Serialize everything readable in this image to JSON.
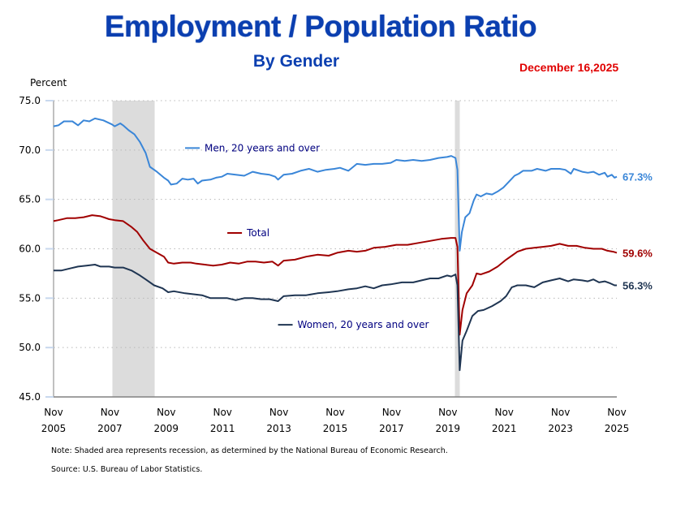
{
  "chart_data": {
    "type": "line",
    "title": "Employment / Population Ratio",
    "subtitle": "By Gender",
    "date": "December 16,2025",
    "ylabel": "Percent",
    "xlabel": "",
    "ylim": [
      45.0,
      75.0
    ],
    "yticks": [
      "75.0",
      "70.0",
      "65.0",
      "60.0",
      "55.0",
      "50.0",
      "45.0"
    ],
    "ytick_values": [
      75,
      70,
      65,
      60,
      55,
      50,
      45
    ],
    "xlim": [
      2005.83,
      2025.83
    ],
    "xticks": [
      {
        "x": 2005.83,
        "month": "Nov",
        "year": "2005"
      },
      {
        "x": 2007.83,
        "month": "Nov",
        "year": "2007"
      },
      {
        "x": 2009.83,
        "month": "Nov",
        "year": "2009"
      },
      {
        "x": 2011.83,
        "month": "Nov",
        "year": "2011"
      },
      {
        "x": 2013.83,
        "month": "Nov",
        "year": "2013"
      },
      {
        "x": 2015.83,
        "month": "Nov",
        "year": "2015"
      },
      {
        "x": 2017.83,
        "month": "Nov",
        "year": "2017"
      },
      {
        "x": 2019.83,
        "month": "Nov",
        "year": "2019"
      },
      {
        "x": 2021.83,
        "month": "Nov",
        "year": "2021"
      },
      {
        "x": 2023.83,
        "month": "Nov",
        "year": "2023"
      },
      {
        "x": 2025.83,
        "month": "Nov",
        "year": "2025"
      }
    ],
    "grid": "horizontal-dotted",
    "recessions": [
      [
        2007.92,
        2009.42
      ],
      [
        2020.08,
        2020.25
      ]
    ],
    "series": [
      {
        "name": "Men, 20 years and over",
        "color": "#3a86d8",
        "end_label": "67.3%",
        "points": [
          [
            2005.83,
            72.4
          ],
          [
            2006.0,
            72.5
          ],
          [
            2006.2,
            72.9
          ],
          [
            2006.5,
            72.9
          ],
          [
            2006.7,
            72.5
          ],
          [
            2006.9,
            73.0
          ],
          [
            2007.1,
            72.9
          ],
          [
            2007.3,
            73.2
          ],
          [
            2007.6,
            73.0
          ],
          [
            2007.9,
            72.6
          ],
          [
            2008.0,
            72.4
          ],
          [
            2008.2,
            72.7
          ],
          [
            2008.3,
            72.5
          ],
          [
            2008.5,
            72.0
          ],
          [
            2008.7,
            71.6
          ],
          [
            2008.9,
            70.8
          ],
          [
            2009.1,
            69.7
          ],
          [
            2009.25,
            68.3
          ],
          [
            2009.5,
            67.8
          ],
          [
            2009.75,
            67.2
          ],
          [
            2009.9,
            66.9
          ],
          [
            2010.0,
            66.5
          ],
          [
            2010.2,
            66.6
          ],
          [
            2010.4,
            67.1
          ],
          [
            2010.6,
            67.0
          ],
          [
            2010.8,
            67.1
          ],
          [
            2010.95,
            66.6
          ],
          [
            2011.1,
            66.9
          ],
          [
            2011.4,
            67.0
          ],
          [
            2011.6,
            67.2
          ],
          [
            2011.8,
            67.3
          ],
          [
            2012.0,
            67.6
          ],
          [
            2012.3,
            67.5
          ],
          [
            2012.6,
            67.4
          ],
          [
            2012.9,
            67.8
          ],
          [
            2013.2,
            67.6
          ],
          [
            2013.5,
            67.5
          ],
          [
            2013.7,
            67.3
          ],
          [
            2013.8,
            67.0
          ],
          [
            2014.0,
            67.5
          ],
          [
            2014.3,
            67.6
          ],
          [
            2014.6,
            67.9
          ],
          [
            2014.9,
            68.1
          ],
          [
            2015.2,
            67.8
          ],
          [
            2015.5,
            68.0
          ],
          [
            2015.8,
            68.1
          ],
          [
            2016.0,
            68.2
          ],
          [
            2016.3,
            67.9
          ],
          [
            2016.6,
            68.6
          ],
          [
            2016.9,
            68.5
          ],
          [
            2017.2,
            68.6
          ],
          [
            2017.5,
            68.6
          ],
          [
            2017.8,
            68.7
          ],
          [
            2018.0,
            69.0
          ],
          [
            2018.3,
            68.9
          ],
          [
            2018.6,
            69.0
          ],
          [
            2018.9,
            68.9
          ],
          [
            2019.2,
            69.0
          ],
          [
            2019.5,
            69.2
          ],
          [
            2019.8,
            69.3
          ],
          [
            2019.95,
            69.4
          ],
          [
            2020.1,
            69.2
          ],
          [
            2020.17,
            68.0
          ],
          [
            2020.25,
            59.8
          ],
          [
            2020.33,
            61.7
          ],
          [
            2020.45,
            63.2
          ],
          [
            2020.6,
            63.6
          ],
          [
            2020.75,
            64.9
          ],
          [
            2020.85,
            65.5
          ],
          [
            2021.0,
            65.3
          ],
          [
            2021.2,
            65.6
          ],
          [
            2021.4,
            65.5
          ],
          [
            2021.6,
            65.8
          ],
          [
            2021.8,
            66.2
          ],
          [
            2022.0,
            66.8
          ],
          [
            2022.2,
            67.4
          ],
          [
            2022.35,
            67.6
          ],
          [
            2022.5,
            67.9
          ],
          [
            2022.8,
            67.9
          ],
          [
            2023.0,
            68.1
          ],
          [
            2023.3,
            67.9
          ],
          [
            2023.5,
            68.1
          ],
          [
            2023.8,
            68.1
          ],
          [
            2024.0,
            68.0
          ],
          [
            2024.2,
            67.6
          ],
          [
            2024.3,
            68.1
          ],
          [
            2024.6,
            67.8
          ],
          [
            2024.8,
            67.7
          ],
          [
            2025.0,
            67.8
          ],
          [
            2025.2,
            67.5
          ],
          [
            2025.4,
            67.7
          ],
          [
            2025.5,
            67.3
          ],
          [
            2025.65,
            67.5
          ],
          [
            2025.75,
            67.2
          ],
          [
            2025.83,
            67.3
          ]
        ]
      },
      {
        "name": "Total",
        "color": "#a00000",
        "end_label": "59.6%",
        "points": [
          [
            2005.83,
            62.8
          ],
          [
            2006.0,
            62.9
          ],
          [
            2006.3,
            63.1
          ],
          [
            2006.6,
            63.1
          ],
          [
            2006.9,
            63.2
          ],
          [
            2007.2,
            63.4
          ],
          [
            2007.5,
            63.3
          ],
          [
            2007.8,
            63.0
          ],
          [
            2008.0,
            62.9
          ],
          [
            2008.3,
            62.8
          ],
          [
            2008.6,
            62.2
          ],
          [
            2008.8,
            61.7
          ],
          [
            2009.0,
            60.9
          ],
          [
            2009.25,
            60.0
          ],
          [
            2009.5,
            59.6
          ],
          [
            2009.75,
            59.2
          ],
          [
            2009.9,
            58.6
          ],
          [
            2010.1,
            58.5
          ],
          [
            2010.4,
            58.6
          ],
          [
            2010.7,
            58.6
          ],
          [
            2010.9,
            58.5
          ],
          [
            2011.2,
            58.4
          ],
          [
            2011.5,
            58.3
          ],
          [
            2011.8,
            58.4
          ],
          [
            2012.1,
            58.6
          ],
          [
            2012.4,
            58.5
          ],
          [
            2012.7,
            58.7
          ],
          [
            2013.0,
            58.7
          ],
          [
            2013.3,
            58.6
          ],
          [
            2013.6,
            58.7
          ],
          [
            2013.8,
            58.3
          ],
          [
            2014.0,
            58.8
          ],
          [
            2014.4,
            58.9
          ],
          [
            2014.8,
            59.2
          ],
          [
            2015.2,
            59.4
          ],
          [
            2015.6,
            59.3
          ],
          [
            2015.9,
            59.6
          ],
          [
            2016.3,
            59.8
          ],
          [
            2016.6,
            59.7
          ],
          [
            2016.9,
            59.8
          ],
          [
            2017.2,
            60.1
          ],
          [
            2017.6,
            60.2
          ],
          [
            2018.0,
            60.4
          ],
          [
            2018.4,
            60.4
          ],
          [
            2018.8,
            60.6
          ],
          [
            2019.2,
            60.8
          ],
          [
            2019.6,
            61.0
          ],
          [
            2019.95,
            61.1
          ],
          [
            2020.1,
            61.1
          ],
          [
            2020.17,
            60.2
          ],
          [
            2020.25,
            51.3
          ],
          [
            2020.35,
            53.8
          ],
          [
            2020.5,
            55.5
          ],
          [
            2020.7,
            56.3
          ],
          [
            2020.85,
            57.5
          ],
          [
            2021.0,
            57.4
          ],
          [
            2021.3,
            57.7
          ],
          [
            2021.6,
            58.2
          ],
          [
            2021.9,
            58.9
          ],
          [
            2022.1,
            59.3
          ],
          [
            2022.3,
            59.7
          ],
          [
            2022.6,
            60.0
          ],
          [
            2022.9,
            60.1
          ],
          [
            2023.2,
            60.2
          ],
          [
            2023.5,
            60.3
          ],
          [
            2023.8,
            60.5
          ],
          [
            2024.1,
            60.3
          ],
          [
            2024.4,
            60.3
          ],
          [
            2024.7,
            60.1
          ],
          [
            2025.0,
            60.0
          ],
          [
            2025.3,
            60.0
          ],
          [
            2025.5,
            59.8
          ],
          [
            2025.7,
            59.7
          ],
          [
            2025.83,
            59.6
          ]
        ]
      },
      {
        "name": "Women, 20 years and over",
        "color": "#1f3552",
        "end_label": "56.3%",
        "points": [
          [
            2005.83,
            57.8
          ],
          [
            2006.1,
            57.8
          ],
          [
            2006.4,
            58.0
          ],
          [
            2006.7,
            58.2
          ],
          [
            2007.0,
            58.3
          ],
          [
            2007.3,
            58.4
          ],
          [
            2007.5,
            58.2
          ],
          [
            2007.8,
            58.2
          ],
          [
            2008.0,
            58.1
          ],
          [
            2008.3,
            58.1
          ],
          [
            2008.6,
            57.8
          ],
          [
            2008.9,
            57.3
          ],
          [
            2009.1,
            56.9
          ],
          [
            2009.4,
            56.3
          ],
          [
            2009.7,
            56.0
          ],
          [
            2009.9,
            55.6
          ],
          [
            2010.1,
            55.7
          ],
          [
            2010.5,
            55.5
          ],
          [
            2010.8,
            55.4
          ],
          [
            2011.1,
            55.3
          ],
          [
            2011.4,
            55.0
          ],
          [
            2011.7,
            55.0
          ],
          [
            2012.0,
            55.0
          ],
          [
            2012.3,
            54.8
          ],
          [
            2012.6,
            55.0
          ],
          [
            2012.9,
            55.0
          ],
          [
            2013.2,
            54.9
          ],
          [
            2013.5,
            54.9
          ],
          [
            2013.8,
            54.7
          ],
          [
            2014.0,
            55.2
          ],
          [
            2014.4,
            55.3
          ],
          [
            2014.8,
            55.3
          ],
          [
            2015.2,
            55.5
          ],
          [
            2015.6,
            55.6
          ],
          [
            2015.9,
            55.7
          ],
          [
            2016.3,
            55.9
          ],
          [
            2016.6,
            56.0
          ],
          [
            2016.9,
            56.2
          ],
          [
            2017.2,
            56.0
          ],
          [
            2017.5,
            56.3
          ],
          [
            2017.8,
            56.4
          ],
          [
            2018.2,
            56.6
          ],
          [
            2018.6,
            56.6
          ],
          [
            2018.9,
            56.8
          ],
          [
            2019.2,
            57.0
          ],
          [
            2019.5,
            57.0
          ],
          [
            2019.8,
            57.3
          ],
          [
            2019.95,
            57.2
          ],
          [
            2020.1,
            57.4
          ],
          [
            2020.17,
            56.3
          ],
          [
            2020.25,
            47.7
          ],
          [
            2020.35,
            50.7
          ],
          [
            2020.5,
            51.7
          ],
          [
            2020.7,
            53.2
          ],
          [
            2020.9,
            53.7
          ],
          [
            2021.1,
            53.8
          ],
          [
            2021.4,
            54.2
          ],
          [
            2021.7,
            54.7
          ],
          [
            2021.9,
            55.2
          ],
          [
            2022.1,
            56.1
          ],
          [
            2022.3,
            56.3
          ],
          [
            2022.6,
            56.3
          ],
          [
            2022.9,
            56.1
          ],
          [
            2023.2,
            56.6
          ],
          [
            2023.5,
            56.8
          ],
          [
            2023.8,
            57.0
          ],
          [
            2024.1,
            56.7
          ],
          [
            2024.3,
            56.9
          ],
          [
            2024.6,
            56.8
          ],
          [
            2024.8,
            56.7
          ],
          [
            2025.0,
            56.9
          ],
          [
            2025.2,
            56.6
          ],
          [
            2025.4,
            56.7
          ],
          [
            2025.6,
            56.5
          ],
          [
            2025.75,
            56.3
          ],
          [
            2025.83,
            56.3
          ]
        ]
      }
    ],
    "legend": [
      {
        "label": "Men, 20 years and over",
        "color": "#3a86d8",
        "anchor": [
          2010.5,
          70.2
        ]
      },
      {
        "label": "Total",
        "color": "#a00000",
        "anchor": [
          2012.0,
          61.6
        ]
      },
      {
        "label": "Women, 20 years and over",
        "color": "#1f3552",
        "anchor": [
          2013.8,
          52.3
        ]
      }
    ]
  },
  "notes": {
    "note": "Note: Shaded area represents recession, as determined by the National Bureau of Economic Research.",
    "source": "Source: U.S. Bureau of Labor Statistics."
  }
}
